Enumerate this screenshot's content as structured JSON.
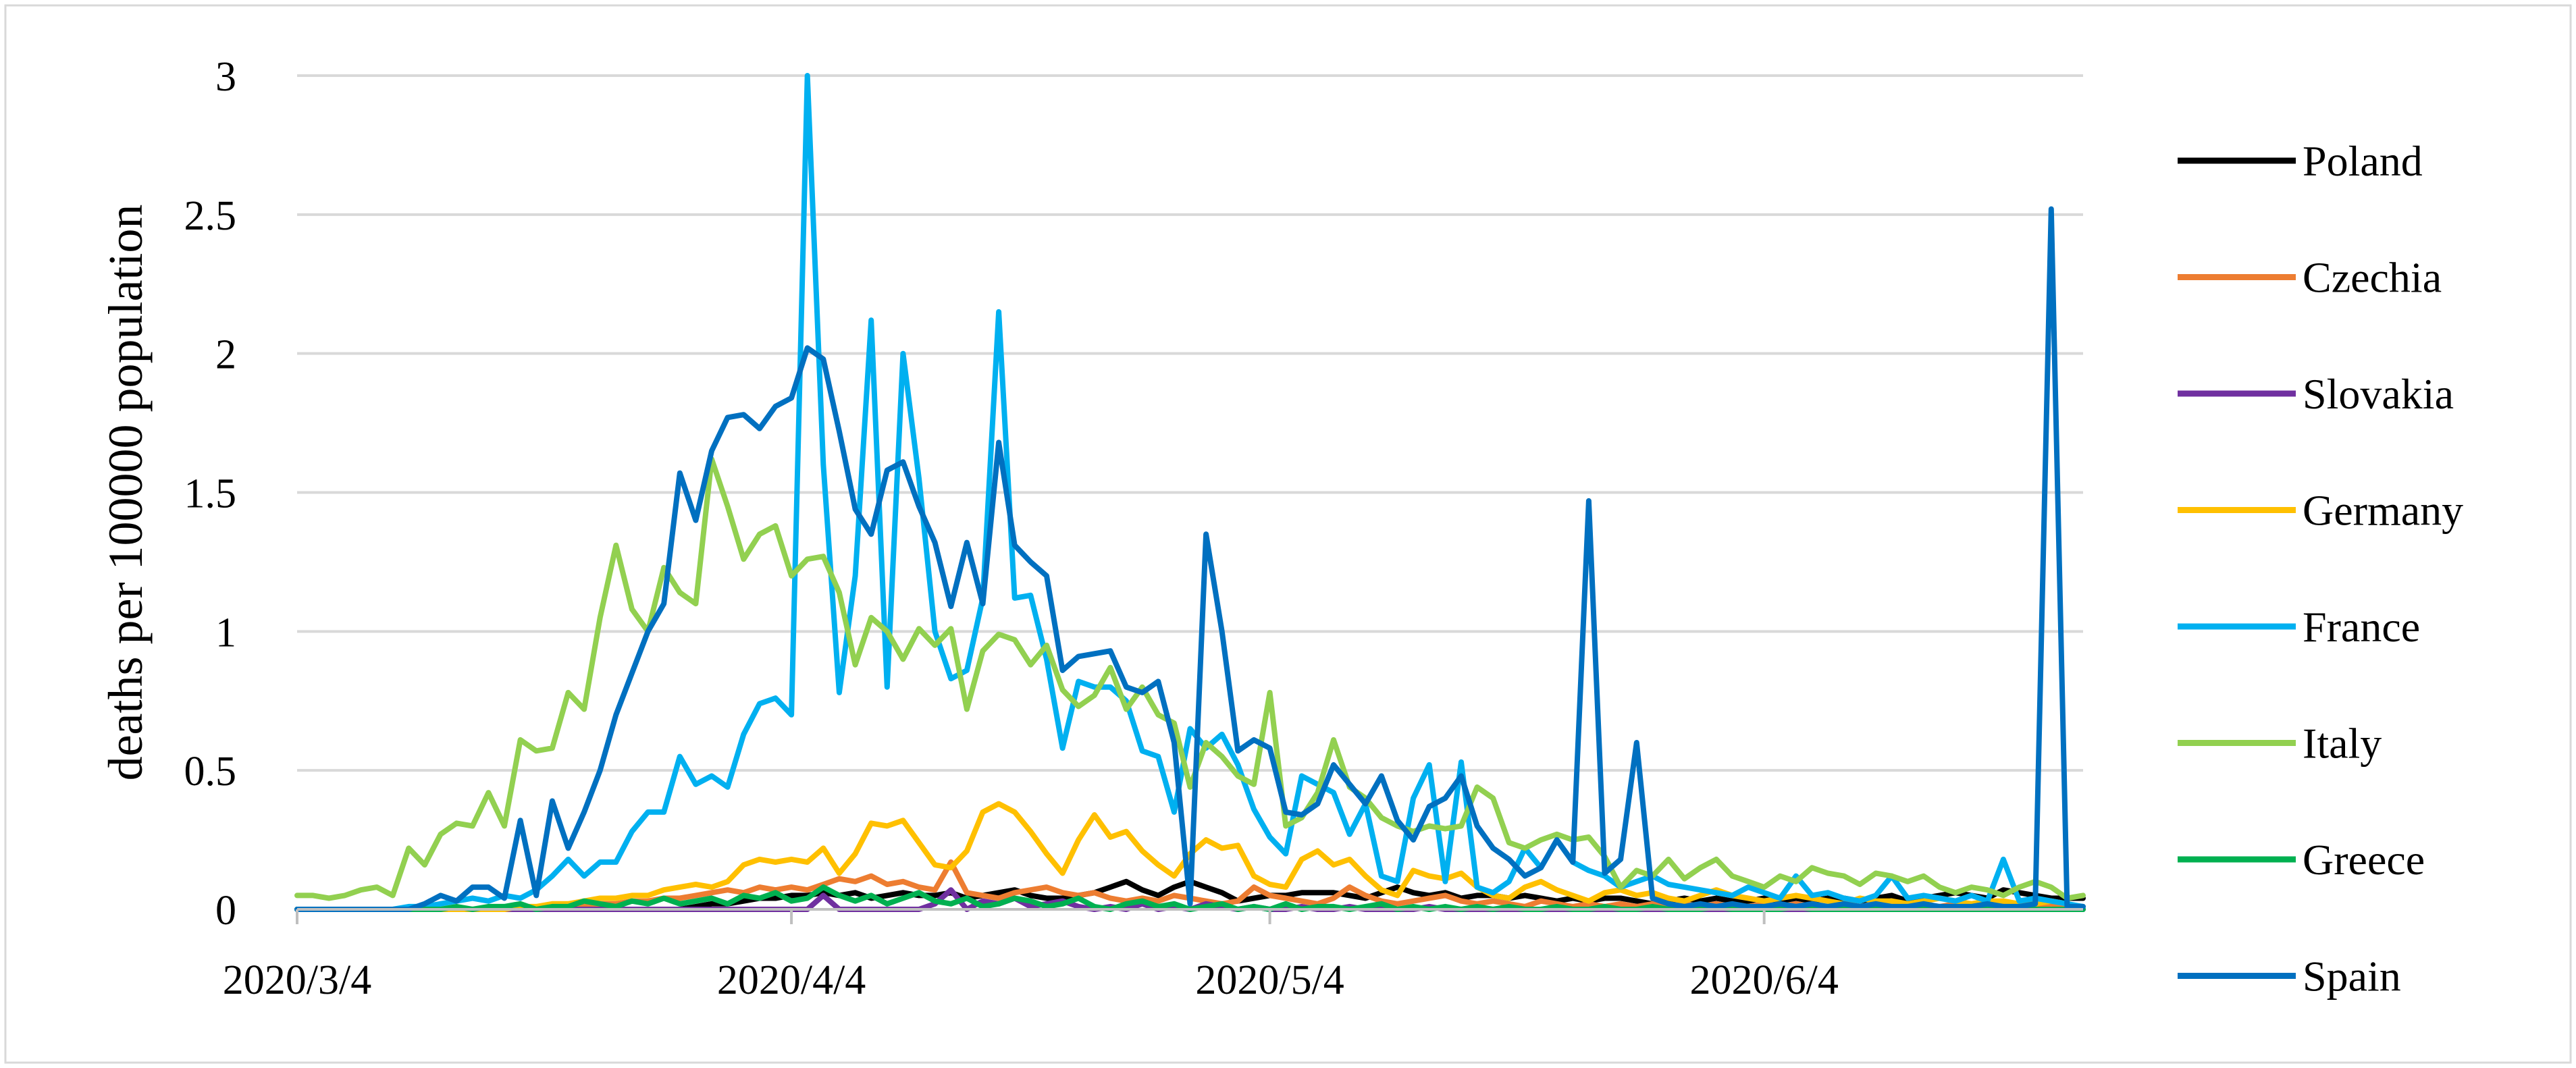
{
  "chart_data": {
    "type": "line",
    "title": "",
    "xlabel": "",
    "ylabel": "deaths per 100000 population",
    "ylim": [
      0,
      3
    ],
    "yticks": [
      "0",
      "0.5",
      "1",
      "1.5",
      "2",
      "2.5",
      "3"
    ],
    "xticks": [
      {
        "label": "2020/3/4",
        "index": 0
      },
      {
        "label": "2020/4/4",
        "index": 31
      },
      {
        "label": "2020/5/4",
        "index": 61
      },
      {
        "label": "2020/6/4",
        "index": 92
      }
    ],
    "x_start": "2020/3/4",
    "x_end": "2020/6/25",
    "grid": true,
    "legend": "right",
    "series": [
      {
        "name": "Poland",
        "color": "#000000",
        "values": [
          0,
          0,
          0,
          0,
          0,
          0,
          0,
          0,
          0,
          0,
          0,
          0,
          0,
          0,
          0,
          0,
          0,
          0,
          0,
          0,
          0,
          0,
          0,
          0,
          0,
          0.01,
          0.02,
          0.02,
          0.03,
          0.04,
          0.04,
          0.05,
          0.05,
          0.06,
          0.05,
          0.06,
          0.04,
          0.05,
          0.06,
          0.05,
          0.05,
          0.06,
          0.04,
          0.05,
          0.06,
          0.07,
          0.05,
          0.04,
          0.04,
          0.05,
          0.06,
          0.08,
          0.1,
          0.07,
          0.05,
          0.08,
          0.1,
          0.08,
          0.06,
          0.03,
          0.04,
          0.05,
          0.05,
          0.06,
          0.06,
          0.06,
          0.05,
          0.04,
          0.06,
          0.08,
          0.06,
          0.05,
          0.06,
          0.04,
          0.05,
          0.05,
          0.04,
          0.05,
          0.04,
          0.03,
          0.04,
          0.03,
          0.04,
          0.04,
          0.03,
          0.02,
          0.03,
          0.04,
          0.03,
          0.04,
          0.03,
          0.03,
          0.04,
          0.03,
          0.04,
          0.03,
          0.04,
          0.04,
          0.03,
          0.04,
          0.05,
          0.03,
          0.04,
          0.05,
          0.06,
          0.05,
          0.04,
          0.07,
          0.06,
          0.05,
          0.04,
          0.04,
          0.04
        ]
      },
      {
        "name": "Czechia",
        "color": "#ed7d31",
        "values": [
          0,
          0,
          0,
          0,
          0,
          0,
          0,
          0,
          0,
          0,
          0,
          0,
          0,
          0,
          0,
          0,
          0,
          0.01,
          0.01,
          0.02,
          0.02,
          0.03,
          0.03,
          0.04,
          0.04,
          0.05,
          0.06,
          0.07,
          0.06,
          0.08,
          0.07,
          0.08,
          0.07,
          0.09,
          0.11,
          0.1,
          0.12,
          0.09,
          0.1,
          0.08,
          0.07,
          0.17,
          0.06,
          0.05,
          0.04,
          0.06,
          0.07,
          0.08,
          0.06,
          0.05,
          0.06,
          0.04,
          0.03,
          0.04,
          0.03,
          0.05,
          0.04,
          0.03,
          0.02,
          0.03,
          0.08,
          0.05,
          0.04,
          0.03,
          0.02,
          0.04,
          0.08,
          0.05,
          0.03,
          0.02,
          0.03,
          0.04,
          0.05,
          0.03,
          0.02,
          0.03,
          0.02,
          0.01,
          0.03,
          0.02,
          0.01,
          0.02,
          0.01,
          0.02,
          0.01,
          0.02,
          0.01,
          0.02,
          0.01,
          0.02,
          0.01,
          0.01,
          0.02,
          0.01,
          0.02,
          0.01,
          0.01,
          0.02,
          0.01,
          0.02,
          0.01,
          0.02,
          0.01,
          0.01,
          0.02,
          0.01,
          0.01,
          0.02,
          0.01,
          0.01,
          0.02,
          0.01,
          0.01
        ]
      },
      {
        "name": "Slovakia",
        "color": "#7030a0",
        "values": [
          0,
          0,
          0,
          0,
          0,
          0,
          0,
          0,
          0,
          0,
          0,
          0,
          0,
          0,
          0,
          0,
          0,
          0,
          0,
          0,
          0,
          0,
          0,
          0,
          0,
          0,
          0,
          0,
          0,
          0,
          0,
          0,
          0,
          0.05,
          0,
          0,
          0,
          0,
          0,
          0,
          0.02,
          0.07,
          0,
          0.03,
          0.02,
          0.04,
          0.01,
          0.02,
          0.03,
          0.01,
          0,
          0.01,
          0,
          0.02,
          0,
          0.01,
          0,
          0.02,
          0.01,
          0,
          0.01,
          0,
          0,
          0.01,
          0,
          0,
          0.01,
          0,
          0,
          0,
          0,
          0.01,
          0,
          0,
          0,
          0,
          0,
          0,
          0,
          0,
          0,
          0,
          0,
          0,
          0,
          0,
          0,
          0,
          0,
          0,
          0,
          0,
          0,
          0,
          0,
          0,
          0,
          0,
          0,
          0,
          0,
          0,
          0,
          0,
          0,
          0,
          0,
          0,
          0,
          0,
          0,
          0,
          0
        ]
      },
      {
        "name": "Germany",
        "color": "#ffc000",
        "values": [
          0,
          0,
          0,
          0,
          0,
          0,
          0,
          0,
          0,
          0,
          0,
          0,
          0,
          0,
          0.01,
          0.01,
          0.02,
          0.02,
          0.03,
          0.04,
          0.04,
          0.05,
          0.05,
          0.07,
          0.08,
          0.09,
          0.08,
          0.1,
          0.16,
          0.18,
          0.17,
          0.18,
          0.17,
          0.22,
          0.13,
          0.2,
          0.31,
          0.3,
          0.32,
          0.24,
          0.16,
          0.15,
          0.21,
          0.35,
          0.38,
          0.35,
          0.28,
          0.2,
          0.13,
          0.25,
          0.34,
          0.26,
          0.28,
          0.21,
          0.16,
          0.12,
          0.2,
          0.25,
          0.22,
          0.23,
          0.12,
          0.09,
          0.08,
          0.18,
          0.21,
          0.16,
          0.18,
          0.12,
          0.07,
          0.05,
          0.14,
          0.12,
          0.11,
          0.13,
          0.08,
          0.05,
          0.04,
          0.08,
          0.1,
          0.07,
          0.05,
          0.03,
          0.06,
          0.07,
          0.05,
          0.06,
          0.04,
          0.03,
          0.05,
          0.07,
          0.05,
          0.04,
          0.03,
          0.04,
          0.05,
          0.04,
          0.03,
          0.02,
          0.04,
          0.03,
          0.03,
          0.02,
          0.03,
          0.04,
          0.03,
          0.02,
          0.03,
          0.03,
          0.02,
          0.02,
          0.03,
          0.02
        ]
      },
      {
        "name": "France",
        "color": "#00b0f0",
        "values": [
          0,
          0,
          0,
          0,
          0,
          0,
          0,
          0.01,
          0.01,
          0.02,
          0.03,
          0.04,
          0.03,
          0.05,
          0.04,
          0.07,
          0.12,
          0.18,
          0.12,
          0.17,
          0.17,
          0.28,
          0.35,
          0.35,
          0.55,
          0.45,
          0.48,
          0.44,
          0.63,
          0.74,
          0.76,
          0.7,
          3.0,
          1.6,
          0.78,
          1.2,
          2.12,
          0.8,
          2.0,
          1.55,
          1.0,
          0.83,
          0.86,
          1.12,
          2.15,
          1.12,
          1.13,
          0.9,
          0.58,
          0.82,
          0.8,
          0.8,
          0.75,
          0.57,
          0.55,
          0.35,
          0.65,
          0.58,
          0.63,
          0.52,
          0.36,
          0.26,
          0.2,
          0.48,
          0.45,
          0.42,
          0.27,
          0.38,
          0.12,
          0.1,
          0.4,
          0.52,
          0.1,
          0.53,
          0.08,
          0.06,
          0.1,
          0.22,
          0.15,
          0.25,
          0.17,
          0.14,
          0.12,
          0.08,
          0.1,
          0.12,
          0.09,
          0.08,
          0.07,
          0.06,
          0.05,
          0.08,
          0.06,
          0.04,
          0.12,
          0.05,
          0.06,
          0.04,
          0.03,
          0.05,
          0.12,
          0.04,
          0.05,
          0.04,
          0.03,
          0.05,
          0.03,
          0.18,
          0.03,
          0.04,
          0.03,
          0.02,
          0.01
        ]
      },
      {
        "name": "Italy",
        "color": "#92d050",
        "values": [
          0.05,
          0.05,
          0.04,
          0.05,
          0.07,
          0.08,
          0.05,
          0.22,
          0.16,
          0.27,
          0.31,
          0.3,
          0.42,
          0.3,
          0.61,
          0.57,
          0.58,
          0.78,
          0.72,
          1.05,
          1.31,
          1.08,
          1.0,
          1.23,
          1.14,
          1.1,
          1.62,
          1.45,
          1.26,
          1.35,
          1.38,
          1.2,
          1.26,
          1.27,
          1.14,
          0.88,
          1.05,
          1.0,
          0.9,
          1.01,
          0.95,
          1.01,
          0.72,
          0.93,
          0.99,
          0.97,
          0.88,
          0.95,
          0.79,
          0.73,
          0.77,
          0.87,
          0.72,
          0.8,
          0.7,
          0.67,
          0.44,
          0.6,
          0.55,
          0.48,
          0.45,
          0.78,
          0.3,
          0.33,
          0.42,
          0.61,
          0.44,
          0.4,
          0.33,
          0.3,
          0.28,
          0.3,
          0.29,
          0.3,
          0.44,
          0.4,
          0.24,
          0.22,
          0.25,
          0.27,
          0.25,
          0.26,
          0.19,
          0.08,
          0.14,
          0.12,
          0.18,
          0.11,
          0.15,
          0.18,
          0.12,
          0.1,
          0.08,
          0.12,
          0.1,
          0.15,
          0.13,
          0.12,
          0.09,
          0.13,
          0.12,
          0.1,
          0.12,
          0.08,
          0.06,
          0.08,
          0.07,
          0.05,
          0.08,
          0.1,
          0.08,
          0.04,
          0.05
        ]
      },
      {
        "name": "Greece",
        "color": "#00b050",
        "values": [
          0,
          0,
          0,
          0,
          0,
          0,
          0,
          0,
          0,
          0,
          0.01,
          0,
          0.01,
          0.01,
          0.02,
          0,
          0.01,
          0.01,
          0.03,
          0.02,
          0.01,
          0.03,
          0.02,
          0.04,
          0.02,
          0.03,
          0.04,
          0.02,
          0.05,
          0.04,
          0.06,
          0.03,
          0.04,
          0.08,
          0.05,
          0.03,
          0.05,
          0.02,
          0.04,
          0.06,
          0.03,
          0.02,
          0.04,
          0.01,
          0.02,
          0.04,
          0.03,
          0.01,
          0.02,
          0.04,
          0.01,
          0,
          0.02,
          0.03,
          0.01,
          0.02,
          0,
          0.01,
          0.02,
          0,
          0.01,
          0,
          0.02,
          0,
          0.01,
          0.01,
          0,
          0.01,
          0.02,
          0,
          0.01,
          0,
          0.01,
          0,
          0.01,
          0,
          0.01,
          0,
          0,
          0.01,
          0,
          0,
          0.01,
          0,
          0,
          0.01,
          0,
          0,
          0,
          0.01,
          0,
          0,
          0,
          0,
          0.01,
          0,
          0,
          0,
          0,
          0,
          0,
          0,
          0,
          0,
          0,
          0,
          0,
          0,
          0,
          0,
          0,
          0,
          0
        ]
      },
      {
        "name": "Spain",
        "color": "#0070c0",
        "values": [
          0,
          0,
          0,
          0,
          0,
          0,
          0,
          0,
          0.02,
          0.05,
          0.03,
          0.08,
          0.08,
          0.04,
          0.32,
          0.05,
          0.39,
          0.22,
          0.35,
          0.5,
          0.7,
          0.85,
          1.0,
          1.1,
          1.57,
          1.4,
          1.65,
          1.77,
          1.78,
          1.73,
          1.81,
          1.84,
          2.02,
          1.98,
          1.72,
          1.44,
          1.35,
          1.58,
          1.61,
          1.45,
          1.32,
          1.09,
          1.32,
          1.1,
          1.68,
          1.31,
          1.25,
          1.2,
          0.86,
          0.91,
          0.92,
          0.93,
          0.8,
          0.78,
          0.82,
          0.6,
          0.02,
          1.35,
          1.0,
          0.57,
          0.61,
          0.58,
          0.35,
          0.34,
          0.38,
          0.52,
          0.45,
          0.38,
          0.48,
          0.32,
          0.25,
          0.37,
          0.4,
          0.48,
          0.3,
          0.22,
          0.18,
          0.12,
          0.15,
          0.25,
          0.17,
          1.47,
          0.13,
          0.18,
          0.6,
          0.04,
          0.02,
          0.01,
          0.02,
          0.01,
          0.02,
          0.01,
          0.01,
          0.02,
          0.01,
          0.02,
          0.01,
          0.02,
          0.01,
          0.02,
          0.01,
          0.01,
          0.02,
          0.01,
          0.01,
          0.01,
          0.02,
          0.01,
          0.01,
          0.02,
          2.52,
          0.01,
          0.01
        ]
      }
    ]
  }
}
